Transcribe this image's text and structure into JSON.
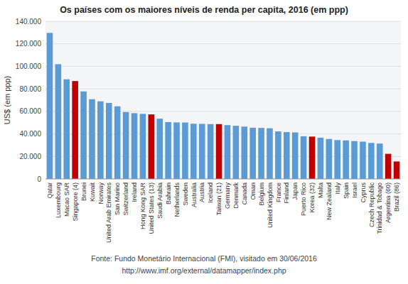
{
  "chart_data": {
    "type": "bar",
    "title": "Os países com os maiores níveis de renda per capita, 2016 (em ppp)",
    "ylabel": "US$ (em ppp)",
    "annotations": [
      "Fonte: Fundo Monetário Internacional (FMI), visitado em 30/06/2016",
      "http://www.imf.org/external/datamapper/index.php"
    ],
    "categories": [
      "Qatar",
      "Luxembourg",
      "Macao SAR",
      "Singapore (4)",
      "Brunei",
      "Kuwait",
      "Norway",
      "United Arab Emirates",
      "San Marino",
      "Switzerland",
      "Ireland",
      "Hong Kong SAR",
      "United States (13)",
      "Saudi Arabia",
      "Bahrain",
      "Netherlands",
      "Sweden",
      "Australia",
      "Austria",
      "Iceland",
      "Taiwan (21)",
      "Germany",
      "Denmark",
      "Canada",
      "Oman",
      "Belgium",
      "United Kingdom",
      "France",
      "Finland",
      "Japan",
      "Puerto Rico",
      "Korea (32)",
      "Malta",
      "New Zealand",
      "Italy",
      "Spain",
      "Israel",
      "Cyprus",
      "Czech Republic",
      "Trinidad & Tobago",
      "Argentina (60)",
      "Brazil (86)"
    ],
    "values": [
      129700,
      101900,
      88500,
      86900,
      77700,
      70800,
      68900,
      67500,
      64500,
      59400,
      58400,
      57800,
      57300,
      53500,
      50500,
      50200,
      50100,
      49000,
      48900,
      48700,
      48700,
      47800,
      47200,
      46500,
      45500,
      45300,
      45000,
      42200,
      41600,
      41300,
      37900,
      37600,
      36600,
      35500,
      34500,
      34200,
      33600,
      33100,
      32000,
      31400,
      22300,
      15500
    ],
    "colors": [
      "#5B9BD5",
      "#5B9BD5",
      "#5B9BD5",
      "#C00000",
      "#5B9BD5",
      "#5B9BD5",
      "#5B9BD5",
      "#5B9BD5",
      "#5B9BD5",
      "#5B9BD5",
      "#5B9BD5",
      "#5B9BD5",
      "#C00000",
      "#5B9BD5",
      "#5B9BD5",
      "#5B9BD5",
      "#5B9BD5",
      "#5B9BD5",
      "#5B9BD5",
      "#5B9BD5",
      "#C00000",
      "#5B9BD5",
      "#5B9BD5",
      "#5B9BD5",
      "#5B9BD5",
      "#5B9BD5",
      "#5B9BD5",
      "#5B9BD5",
      "#5B9BD5",
      "#5B9BD5",
      "#5B9BD5",
      "#C00000",
      "#5B9BD5",
      "#5B9BD5",
      "#5B9BD5",
      "#5B9BD5",
      "#5B9BD5",
      "#5B9BD5",
      "#5B9BD5",
      "#5B9BD5",
      "#C00000",
      "#C00000"
    ],
    "ylim": [
      0,
      140000
    ],
    "yticks": [
      0,
      {
        "value": 20000,
        "label": "20.000"
      },
      {
        "value": 40000,
        "label": "40.000"
      },
      {
        "value": 60000,
        "label": "60.000"
      },
      {
        "value": 80000,
        "label": "80.000"
      },
      {
        "value": 100000,
        "label": "100.000"
      },
      {
        "value": 120000,
        "label": "120.000"
      },
      {
        "value": 140000,
        "label": "140.000"
      }
    ],
    "grid": true
  }
}
